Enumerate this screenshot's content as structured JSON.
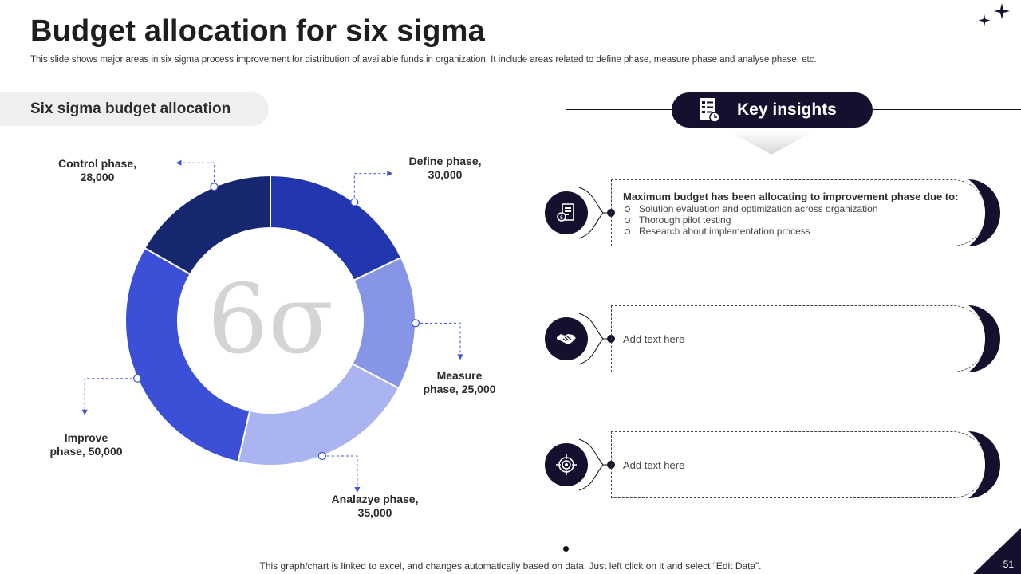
{
  "header": {
    "title": "Budget allocation for six sigma",
    "subtitle": "This slide shows major areas in six sigma process improvement for distribution of available funds in organization. It include areas related to define phase, measure phase and analyse phase, etc."
  },
  "section": {
    "label": "Six sigma budget allocation"
  },
  "chart_data": {
    "type": "pie",
    "subtype": "donut",
    "title": "",
    "center_symbol": "6σ",
    "categories": [
      "Define phase",
      "Measure phase",
      "Analazye phase",
      "Improve phase",
      "Control phase"
    ],
    "values": [
      30000,
      25000,
      35000,
      50000,
      28000
    ],
    "label_lines": [
      [
        "Define phase,",
        "30,000"
      ],
      [
        "Measure",
        "phase, 25,000"
      ],
      [
        "Analazye phase,",
        "35,000"
      ],
      [
        "Improve",
        "phase, 50,000"
      ],
      [
        "Control phase,",
        "28,000"
      ]
    ],
    "colors": [
      "#2236b0",
      "#8795e6",
      "#aab4f1",
      "#3b50d6",
      "#16266f"
    ],
    "start_angle": "12 o'clock",
    "direction": "clockwise"
  },
  "insights": {
    "heading": "Key insights",
    "items": [
      {
        "icon": "budget-document-icon",
        "title": "Maximum budget has been allocating to improvement phase due to:",
        "bullets": [
          "Solution evaluation and optimization across organization",
          "Thorough pilot testing",
          "Research about implementation process"
        ]
      },
      {
        "icon": "handshake-icon",
        "text": "Add text here"
      },
      {
        "icon": "target-icon",
        "text": "Add text here"
      }
    ]
  },
  "footer": {
    "note": "This graph/chart is linked to excel, and changes automatically based on data. Just left click on it and select “Edit Data”.",
    "page_number": "51"
  },
  "colors": {
    "navy": "#14112f",
    "accent": "#2236b0"
  }
}
